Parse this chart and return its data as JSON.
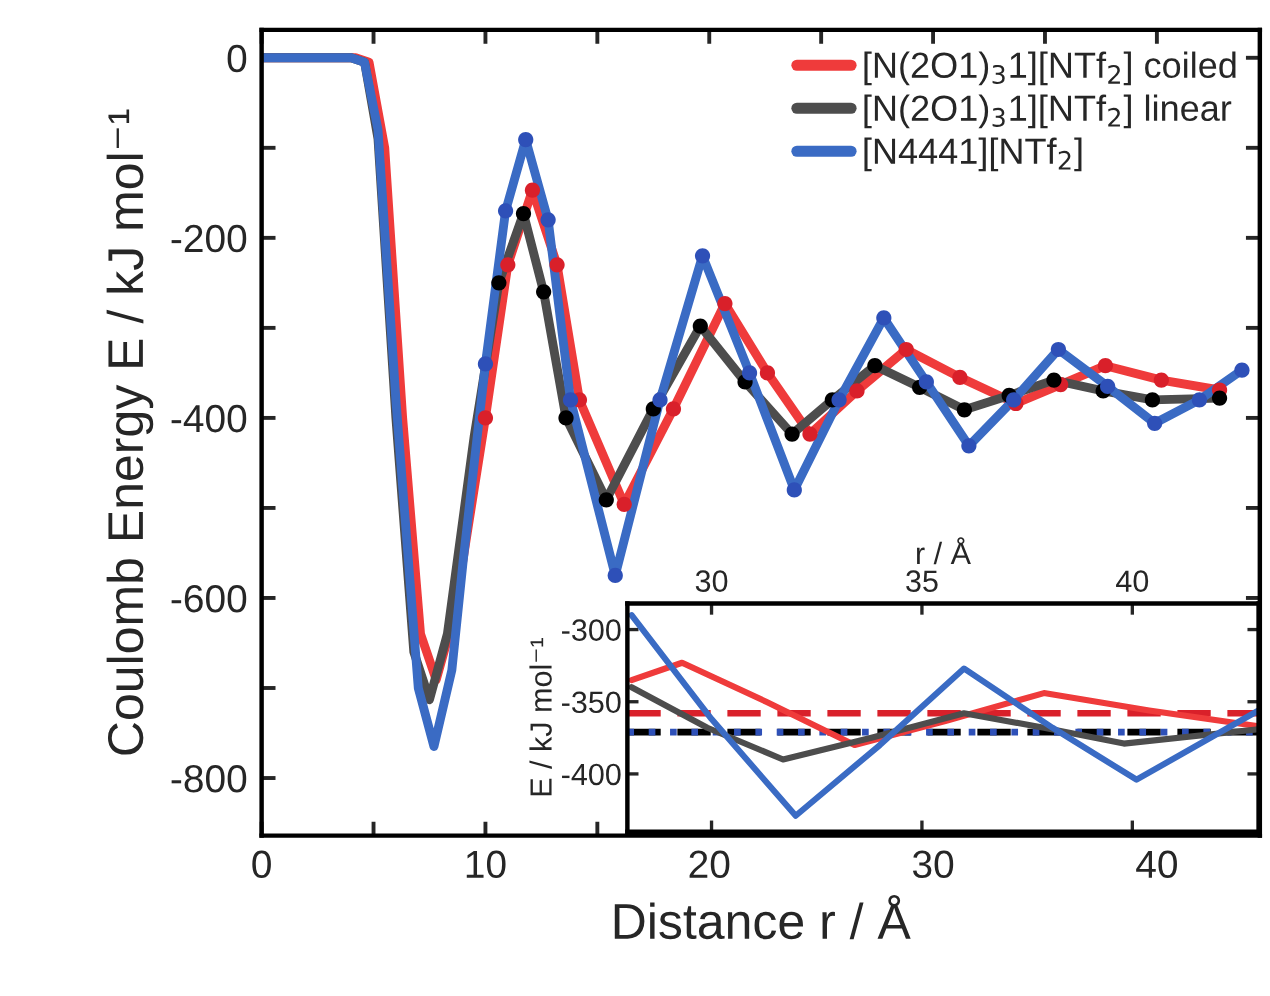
{
  "chart_data": [
    {
      "type": "line",
      "xlabel": "Distance r / Å",
      "ylabel": "Coulomb Energy E / kJ mol⁻¹",
      "xlim": [
        0,
        44.6
      ],
      "ylim": [
        -864,
        31
      ],
      "xticks": [
        0,
        {
          "value": 5,
          "label": null
        },
        10,
        {
          "value": 15,
          "label": null
        },
        20,
        {
          "value": 25,
          "label": null
        },
        30,
        {
          "value": 35,
          "label": null
        },
        40
      ],
      "yticks": [
        0,
        {
          "value": -100,
          "label": null
        },
        -200,
        {
          "value": -300,
          "label": null
        },
        -400,
        {
          "value": -500,
          "label": null
        },
        -600,
        {
          "value": -700,
          "label": null
        },
        -800
      ],
      "grid": false,
      "legend": "top right",
      "line_style": "solid",
      "series": [
        {
          "name": "[N(2O1)$_{3}$1][NTf$_{2}$] coiled",
          "color": "#ef3b3b",
          "x": [
            0,
            4.2,
            4.8,
            5.5,
            6.3,
            7.1,
            7.8,
            8.6,
            10,
            11,
            12.1,
            13.2,
            14.2,
            16.2,
            18.4,
            20.7,
            22.6,
            24.5,
            26.6,
            28.8,
            31.2,
            33.7,
            35.7,
            37.7,
            40.2,
            42.8
          ],
          "values": [
            0,
            0,
            -5,
            -100,
            -400,
            -640,
            -691,
            -620,
            -400,
            -230,
            -147,
            -230,
            -380,
            -496,
            -390,
            -273,
            -350,
            -418,
            -370,
            -324,
            -355,
            -384,
            -363,
            -342,
            -358,
            -369
          ]
        },
        {
          "name": "[N(2O1)$_{3}$1][NTf$_{2}$] linear",
          "color": "#4d4d4d",
          "x": [
            0,
            4,
            4.6,
            5.2,
            6,
            6.8,
            7.5,
            8.3,
            9.5,
            10.6,
            11.7,
            12.6,
            13.6,
            15.4,
            17.5,
            19.6,
            21.6,
            23.7,
            25.5,
            27.4,
            29.4,
            31.4,
            33.4,
            35.4,
            37.6,
            39.8,
            42.8
          ],
          "values": [
            0,
            0,
            -5,
            -90,
            -400,
            -660,
            -713,
            -640,
            -420,
            -250,
            -173,
            -260,
            -400,
            -491,
            -390,
            -298,
            -360,
            -418,
            -380,
            -342,
            -366,
            -391,
            -375,
            -358,
            -370,
            -380,
            -378
          ]
        },
        {
          "name": "[N4441][NTf$_{2}$]",
          "color": "#3a6bc4",
          "x": [
            0,
            4,
            4.6,
            5.2,
            6,
            7,
            7.7,
            8.5,
            9,
            10,
            10.9,
            11.8,
            12.8,
            13.8,
            15.8,
            17.8,
            19.7,
            21.8,
            23.8,
            25.8,
            27.8,
            29.7,
            31.6,
            33.6,
            35.6,
            37.8,
            39.9,
            41.9,
            43.8
          ],
          "values": [
            0,
            0,
            -5,
            -80,
            -380,
            -700,
            -765,
            -680,
            -560,
            -340,
            -170,
            -91,
            -180,
            -380,
            -575,
            -380,
            -220,
            -350,
            -480,
            -380,
            -289,
            -360,
            -431,
            -380,
            -324,
            -365,
            -406,
            -380,
            -347
          ]
        },
        {
          "type": "scatter",
          "marker": "circle",
          "color": "#d9202a",
          "x": [
            10,
            11,
            12.1,
            13.2,
            14.2,
            16.2,
            18.4,
            20.7,
            22.6,
            24.5,
            26.6,
            28.8,
            31.2,
            33.7,
            35.7,
            37.7,
            40.2,
            42.8
          ],
          "values": [
            -400,
            -230,
            -147,
            -230,
            -380,
            -496,
            -390,
            -273,
            -350,
            -418,
            -370,
            -324,
            -355,
            -384,
            -363,
            -342,
            -358,
            -369
          ]
        },
        {
          "type": "scatter",
          "marker": "circle",
          "color": "#000000",
          "x": [
            10.6,
            11.7,
            12.6,
            13.6,
            15.4,
            17.5,
            19.6,
            21.6,
            23.7,
            25.5,
            27.4,
            29.4,
            31.4,
            33.4,
            35.4,
            37.6,
            39.8,
            42.8
          ],
          "values": [
            -250,
            -173,
            -260,
            -400,
            -491,
            -390,
            -298,
            -360,
            -418,
            -380,
            -342,
            -366,
            -391,
            -375,
            -358,
            -370,
            -380,
            -378
          ]
        },
        {
          "type": "scatter",
          "marker": "circle",
          "color": "#2e50b8",
          "x": [
            10,
            10.9,
            11.8,
            12.8,
            13.8,
            15.8,
            17.8,
            19.7,
            21.8,
            23.8,
            25.8,
            27.8,
            29.7,
            31.6,
            33.6,
            35.6,
            37.8,
            39.9,
            41.9,
            43.8
          ],
          "values": [
            -340,
            -170,
            -91,
            -180,
            -380,
            -575,
            -380,
            -220,
            -350,
            -480,
            -380,
            -289,
            -360,
            -431,
            -380,
            -324,
            -365,
            -406,
            -380,
            -347
          ]
        }
      ]
    },
    {
      "type": "line",
      "xlabel": "r / Å",
      "ylabel": "E / kJ mol⁻¹",
      "xlim": [
        28,
        43
      ],
      "ylim": [
        -440,
        -282
      ],
      "xticks": [
        30,
        35,
        40
      ],
      "yticks": [
        -300,
        -350,
        -400
      ],
      "grid": false,
      "line_style": "solid",
      "series": [
        {
          "color": "#ef3b3b",
          "x": [
            28.1,
            29.3,
            31.3,
            33.4,
            35.6,
            37.9,
            40.4,
            43.0
          ],
          "values": [
            -335,
            -323,
            -350,
            -380,
            -363,
            -344,
            -356,
            -367
          ]
        },
        {
          "color": "#4d4d4d",
          "x": [
            28.1,
            29.9,
            31.7,
            33.8,
            36.0,
            37.9,
            39.8,
            43.0
          ],
          "values": [
            -340,
            -368,
            -390,
            -375,
            -358,
            -368,
            -379,
            -369
          ]
        },
        {
          "color": "#3a6bc4",
          "x": [
            28.1,
            30.0,
            32.0,
            34.0,
            36.0,
            38.1,
            40.1,
            43.0
          ],
          "values": [
            -290,
            -362,
            -429,
            -380,
            -327,
            -368,
            -404,
            -356
          ]
        }
      ],
      "ref_lines": [
        {
          "axis": "y",
          "value": -358,
          "color": "#d9202a",
          "line_style": "dashed"
        },
        {
          "axis": "y",
          "value": -371,
          "color": "#000000",
          "line_style": "dashed"
        },
        {
          "axis": "y",
          "value": -371,
          "color": "#2e50b8",
          "line_style": "dotted"
        }
      ]
    }
  ]
}
